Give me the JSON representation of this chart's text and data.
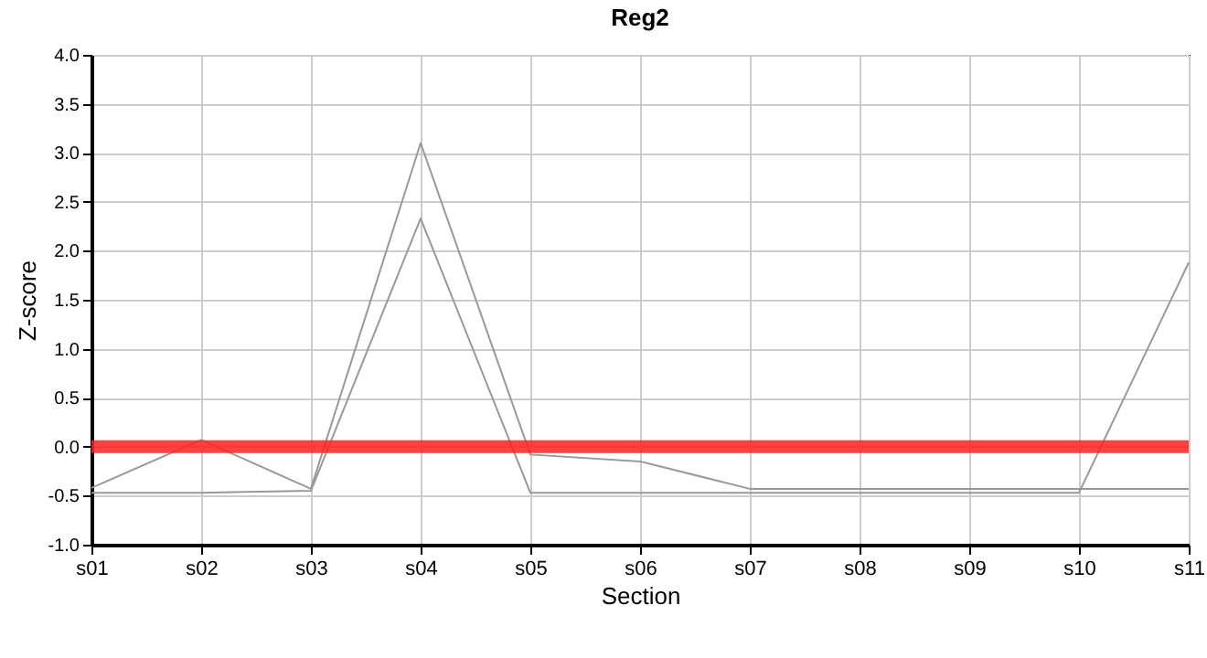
{
  "chart_data": {
    "type": "line",
    "title": "Reg2",
    "xlabel": "Section",
    "ylabel": "Z-score",
    "categories": [
      "s01",
      "s02",
      "s03",
      "s04",
      "s05",
      "s06",
      "s07",
      "s08",
      "s09",
      "s10",
      "s11"
    ],
    "series": [
      {
        "color": "#999999",
        "values": [
          -0.42,
          0.07,
          -0.43,
          3.1,
          -0.08,
          -0.15,
          -0.43,
          -0.43,
          -0.43,
          -0.43,
          -0.43
        ]
      },
      {
        "color": "#999999",
        "values": [
          -0.47,
          -0.47,
          -0.45,
          2.33,
          -0.47,
          -0.47,
          -0.47,
          -0.47,
          -0.47,
          -0.47,
          1.88
        ]
      }
    ],
    "ylim": [
      -1.0,
      4.0
    ],
    "yticks": [
      {
        "value": -1,
        "label": "-1.0"
      },
      {
        "value": -0.5,
        "label": "-0.5"
      },
      {
        "value": 0,
        "label": "0.0"
      },
      {
        "value": 0.5,
        "label": "0.5"
      },
      {
        "value": 1,
        "label": "1.0"
      },
      {
        "value": 1.5,
        "label": "1.5"
      },
      {
        "value": 2,
        "label": "2.0"
      },
      {
        "value": 2.5,
        "label": "2.5"
      },
      {
        "value": 3,
        "label": "3.0"
      },
      {
        "value": 3.5,
        "label": "3.5"
      },
      {
        "value": 4,
        "label": "4.0"
      }
    ],
    "ref_lines": [
      {
        "axis": "y",
        "value": 0,
        "color": "#ff2020"
      }
    ],
    "grid": true,
    "marker": "none",
    "line_style": "solid"
  }
}
